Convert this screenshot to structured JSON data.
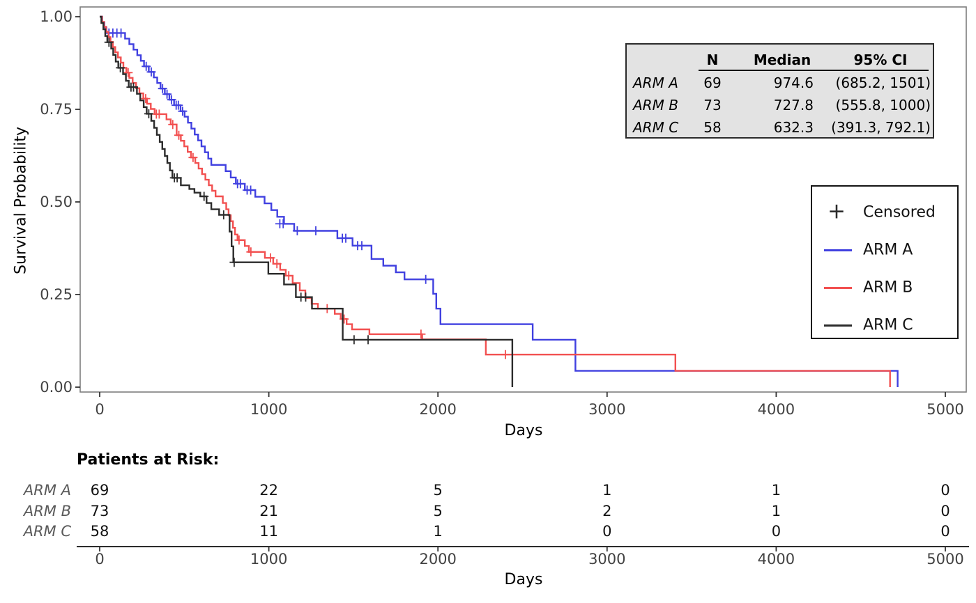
{
  "plot": {
    "x_axis": {
      "label": "Days",
      "tick_labels": [
        "0",
        "1000",
        "2000",
        "3000",
        "4000",
        "5000"
      ],
      "tick_values": [
        0,
        1000,
        2000,
        3000,
        4000,
        5000
      ]
    },
    "y_axis": {
      "label": "Survival Probability",
      "tick_labels": [
        "1.00",
        "0.75",
        "0.50",
        "0.25",
        "0.00"
      ],
      "tick_values": [
        1.0,
        0.75,
        0.5,
        0.25,
        0.0
      ]
    }
  },
  "summary_table": {
    "col_headers": [
      "N",
      "Median",
      "95% CI"
    ],
    "rows": [
      {
        "arm": "ARM A",
        "n": "69",
        "median": "974.6",
        "ci": "(685.2, 1501)"
      },
      {
        "arm": "ARM B",
        "n": "73",
        "median": "727.8",
        "ci": "(555.8, 1000)"
      },
      {
        "arm": "ARM C",
        "n": "58",
        "median": "632.3",
        "ci": "(391.3, 792.1)"
      }
    ]
  },
  "legend": {
    "censored_label": "Censored",
    "censored_marker": "+",
    "items": [
      {
        "label": "ARM A",
        "color": "#4040e0"
      },
      {
        "label": "ARM B",
        "color": "#f25050"
      },
      {
        "label": "ARM C",
        "color": "#2b2b2b"
      }
    ]
  },
  "risk_table": {
    "title": "Patients at Risk:",
    "x_label": "Days",
    "tick_labels": [
      "0",
      "1000",
      "2000",
      "3000",
      "4000",
      "5000"
    ],
    "rows": [
      {
        "arm": "ARM A",
        "counts": [
          "69",
          "22",
          "5",
          "1",
          "1",
          "0"
        ]
      },
      {
        "arm": "ARM B",
        "counts": [
          "73",
          "21",
          "5",
          "2",
          "1",
          "0"
        ]
      },
      {
        "arm": "ARM C",
        "counts": [
          "58",
          "11",
          "1",
          "0",
          "0",
          "0"
        ]
      }
    ]
  },
  "colors": {
    "arm_a": "#4040e0",
    "arm_b": "#f25050",
    "arm_c": "#2b2b2b",
    "panel_border": "#7d7d7d",
    "tick_mark": "#333333",
    "tick_label": "#424242",
    "stats_bg": "#e3e3e3"
  },
  "chart_data": {
    "type": "line",
    "subtype": "kaplan_meier_step",
    "title": "",
    "xlabel": "Days",
    "ylabel": "Survival Probability",
    "xlim": [
      0,
      5000
    ],
    "ylim": [
      0,
      1
    ],
    "x_ticks": [
      0,
      1000,
      2000,
      3000,
      4000,
      5000
    ],
    "y_ticks": [
      0,
      0.25,
      0.5,
      0.75,
      1.0
    ],
    "grid": false,
    "legend_position": "right",
    "censored_marker": "+",
    "series": [
      {
        "name": "ARM A",
        "color": "#4040e0",
        "n": 69,
        "median": 974.6,
        "ci_95": [
          685.2,
          1501
        ],
        "at_risk": [
          69,
          22,
          5,
          1,
          1,
          0
        ],
        "steps": [
          [
            0,
            1.0
          ],
          [
            15,
            0.985
          ],
          [
            28,
            0.971
          ],
          [
            40,
            0.956
          ],
          [
            150,
            0.941
          ],
          [
            175,
            0.926
          ],
          [
            200,
            0.911
          ],
          [
            222,
            0.896
          ],
          [
            243,
            0.881
          ],
          [
            262,
            0.866
          ],
          [
            290,
            0.851
          ],
          [
            320,
            0.836
          ],
          [
            340,
            0.821
          ],
          [
            360,
            0.806
          ],
          [
            385,
            0.791
          ],
          [
            412,
            0.776
          ],
          [
            440,
            0.761
          ],
          [
            478,
            0.745
          ],
          [
            502,
            0.73
          ],
          [
            522,
            0.714
          ],
          [
            542,
            0.698
          ],
          [
            562,
            0.682
          ],
          [
            582,
            0.666
          ],
          [
            602,
            0.65
          ],
          [
            622,
            0.634
          ],
          [
            642,
            0.617
          ],
          [
            660,
            0.6
          ],
          [
            745,
            0.583
          ],
          [
            775,
            0.566
          ],
          [
            805,
            0.549
          ],
          [
            858,
            0.532
          ],
          [
            920,
            0.514
          ],
          [
            975,
            0.496
          ],
          [
            1015,
            0.478
          ],
          [
            1050,
            0.46
          ],
          [
            1090,
            0.441
          ],
          [
            1150,
            0.422
          ],
          [
            1405,
            0.402
          ],
          [
            1495,
            0.382
          ],
          [
            1607,
            0.346
          ],
          [
            1677,
            0.328
          ],
          [
            1751,
            0.31
          ],
          [
            1802,
            0.291
          ],
          [
            1972,
            0.252
          ],
          [
            1990,
            0.212
          ],
          [
            2015,
            0.17
          ],
          [
            2560,
            0.128
          ],
          [
            2813,
            0.044
          ],
          [
            4718,
            0
          ]
        ],
        "censors": [
          [
            55,
            0.956
          ],
          [
            78,
            0.956
          ],
          [
            102,
            0.956
          ],
          [
            126,
            0.956
          ],
          [
            275,
            0.866
          ],
          [
            305,
            0.851
          ],
          [
            372,
            0.806
          ],
          [
            398,
            0.791
          ],
          [
            425,
            0.776
          ],
          [
            452,
            0.761
          ],
          [
            465,
            0.761
          ],
          [
            490,
            0.745
          ],
          [
            815,
            0.549
          ],
          [
            832,
            0.549
          ],
          [
            872,
            0.532
          ],
          [
            893,
            0.532
          ],
          [
            1065,
            0.441
          ],
          [
            1085,
            0.441
          ],
          [
            1168,
            0.422
          ],
          [
            1278,
            0.422
          ],
          [
            1435,
            0.402
          ],
          [
            1455,
            0.402
          ],
          [
            1525,
            0.382
          ],
          [
            1550,
            0.382
          ],
          [
            1928,
            0.291
          ]
        ]
      },
      {
        "name": "ARM B",
        "color": "#f25050",
        "n": 73,
        "median": 727.8,
        "ci_95": [
          555.8,
          1000
        ],
        "at_risk": [
          73,
          21,
          5,
          2,
          1,
          0
        ],
        "steps": [
          [
            0,
            1.0
          ],
          [
            14,
            0.986
          ],
          [
            26,
            0.973
          ],
          [
            38,
            0.959
          ],
          [
            52,
            0.945
          ],
          [
            64,
            0.932
          ],
          [
            78,
            0.918
          ],
          [
            92,
            0.904
          ],
          [
            108,
            0.89
          ],
          [
            125,
            0.876
          ],
          [
            140,
            0.862
          ],
          [
            158,
            0.849
          ],
          [
            175,
            0.835
          ],
          [
            195,
            0.821
          ],
          [
            215,
            0.807
          ],
          [
            235,
            0.793
          ],
          [
            258,
            0.779
          ],
          [
            280,
            0.765
          ],
          [
            302,
            0.751
          ],
          [
            325,
            0.737
          ],
          [
            395,
            0.723
          ],
          [
            420,
            0.709
          ],
          [
            455,
            0.68
          ],
          [
            480,
            0.665
          ],
          [
            500,
            0.65
          ],
          [
            520,
            0.635
          ],
          [
            540,
            0.62
          ],
          [
            565,
            0.605
          ],
          [
            585,
            0.59
          ],
          [
            605,
            0.575
          ],
          [
            625,
            0.56
          ],
          [
            645,
            0.545
          ],
          [
            665,
            0.53
          ],
          [
            685,
            0.515
          ],
          [
            728,
            0.497
          ],
          [
            748,
            0.48
          ],
          [
            762,
            0.464
          ],
          [
            775,
            0.448
          ],
          [
            788,
            0.43
          ],
          [
            800,
            0.412
          ],
          [
            815,
            0.397
          ],
          [
            858,
            0.381
          ],
          [
            882,
            0.365
          ],
          [
            977,
            0.349
          ],
          [
            1026,
            0.333
          ],
          [
            1067,
            0.317
          ],
          [
            1100,
            0.301
          ],
          [
            1141,
            0.281
          ],
          [
            1183,
            0.261
          ],
          [
            1216,
            0.241
          ],
          [
            1253,
            0.225
          ],
          [
            1290,
            0.212
          ],
          [
            1390,
            0.198
          ],
          [
            1425,
            0.184
          ],
          [
            1460,
            0.17
          ],
          [
            1492,
            0.156
          ],
          [
            1595,
            0.143
          ],
          [
            1907,
            0.129
          ],
          [
            2283,
            0.088
          ],
          [
            3404,
            0.044
          ],
          [
            4673,
            0
          ]
        ],
        "censors": [
          [
            168,
            0.849
          ],
          [
            272,
            0.779
          ],
          [
            335,
            0.737
          ],
          [
            352,
            0.737
          ],
          [
            432,
            0.709
          ],
          [
            468,
            0.68
          ],
          [
            552,
            0.62
          ],
          [
            824,
            0.397
          ],
          [
            894,
            0.365
          ],
          [
            1010,
            0.349
          ],
          [
            1048,
            0.333
          ],
          [
            1118,
            0.301
          ],
          [
            1345,
            0.212
          ],
          [
            1445,
            0.184
          ],
          [
            1900,
            0.143
          ],
          [
            2399,
            0.088
          ]
        ]
      },
      {
        "name": "ARM C",
        "color": "#2b2b2b",
        "n": 58,
        "median": 632.3,
        "ci_95": [
          391.3,
          792.1
        ],
        "at_risk": [
          58,
          11,
          1,
          0,
          0,
          0
        ],
        "steps": [
          [
            0,
            1.0
          ],
          [
            10,
            0.983
          ],
          [
            22,
            0.966
          ],
          [
            33,
            0.948
          ],
          [
            45,
            0.931
          ],
          [
            68,
            0.914
          ],
          [
            80,
            0.897
          ],
          [
            95,
            0.879
          ],
          [
            110,
            0.862
          ],
          [
            138,
            0.845
          ],
          [
            155,
            0.827
          ],
          [
            172,
            0.81
          ],
          [
            220,
            0.792
          ],
          [
            240,
            0.774
          ],
          [
            260,
            0.756
          ],
          [
            278,
            0.738
          ],
          [
            305,
            0.719
          ],
          [
            322,
            0.7
          ],
          [
            338,
            0.681
          ],
          [
            355,
            0.662
          ],
          [
            370,
            0.643
          ],
          [
            385,
            0.624
          ],
          [
            400,
            0.605
          ],
          [
            415,
            0.585
          ],
          [
            430,
            0.565
          ],
          [
            480,
            0.545
          ],
          [
            530,
            0.535
          ],
          [
            560,
            0.525
          ],
          [
            595,
            0.515
          ],
          [
            632,
            0.497
          ],
          [
            660,
            0.48
          ],
          [
            706,
            0.465
          ],
          [
            768,
            0.42
          ],
          [
            780,
            0.38
          ],
          [
            790,
            0.337
          ],
          [
            997,
            0.306
          ],
          [
            1090,
            0.277
          ],
          [
            1160,
            0.243
          ],
          [
            1255,
            0.212
          ],
          [
            1437,
            0.128
          ],
          [
            2440,
            0
          ]
        ],
        "censors": [
          [
            55,
            0.931
          ],
          [
            122,
            0.862
          ],
          [
            185,
            0.81
          ],
          [
            200,
            0.81
          ],
          [
            290,
            0.738
          ],
          [
            442,
            0.565
          ],
          [
            458,
            0.565
          ],
          [
            617,
            0.515
          ],
          [
            733,
            0.465
          ],
          [
            795,
            0.337
          ],
          [
            1190,
            0.243
          ],
          [
            1218,
            0.243
          ],
          [
            1504,
            0.128
          ],
          [
            1587,
            0.128
          ]
        ]
      }
    ]
  }
}
